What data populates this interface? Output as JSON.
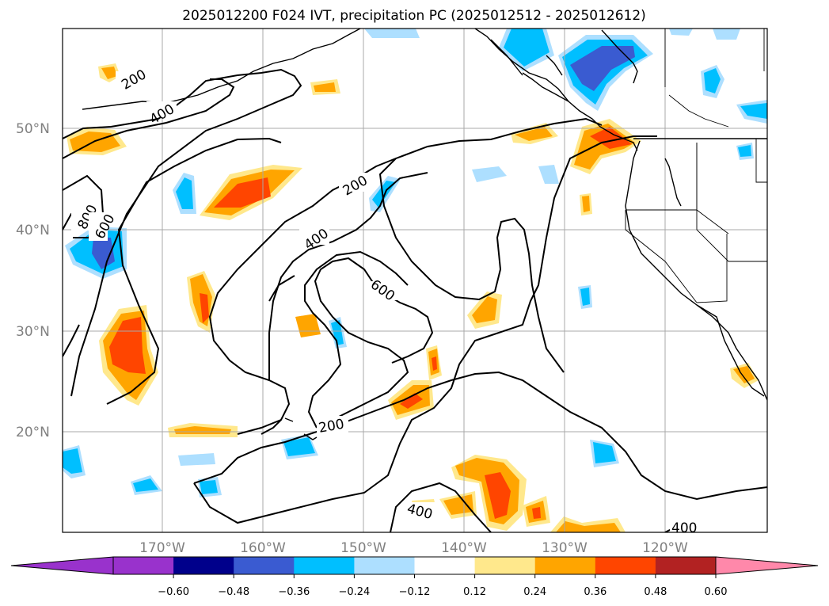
{
  "title": "2025012200 F024 IVT, precipitation PC (2025012512 - 2025012612)",
  "lat_labels": [
    "50°N",
    "40°N",
    "30°N",
    "20°N"
  ],
  "lon_labels": [
    "170°W",
    "160°W",
    "150°W",
    "140°W",
    "130°W",
    "120°W"
  ],
  "contour_labels": [
    "200",
    "400",
    "800",
    "600",
    "200",
    "400",
    "600",
    "200",
    "400",
    "400"
  ],
  "colorbar": {
    "ticks": [
      "−0.60",
      "−0.48",
      "−0.36",
      "−0.24",
      "−0.12",
      "0.12",
      "0.24",
      "0.36",
      "0.48",
      "0.60"
    ],
    "colors": [
      "#9932CC",
      "#00008B",
      "#3A5BD1",
      "#00BFFF",
      "#ADDFFF",
      "#FFFFFF",
      "#FFE88C",
      "#FFA500",
      "#FF4500",
      "#B22222"
    ],
    "under_color": "#9932CC",
    "over_color": "#FF88AA"
  }
}
